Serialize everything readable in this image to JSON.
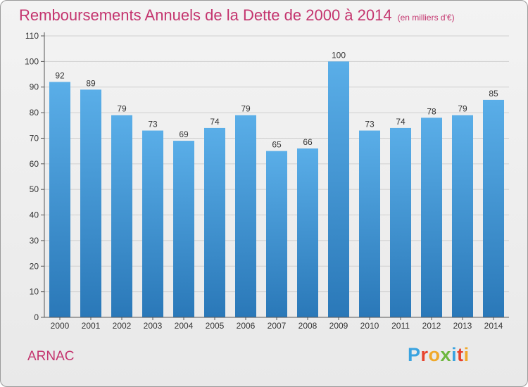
{
  "header": {
    "title": "Remboursements Annuels de la Dette de 2000 à 2014",
    "unit_note": "(en milliers d'€)"
  },
  "footer": {
    "commune": "ARNAC",
    "logo_letters": [
      {
        "char": "P",
        "color": "#3aa3e0"
      },
      {
        "char": "r",
        "color": "#e8432d"
      },
      {
        "char": "o",
        "color": "#f0a92b"
      },
      {
        "char": "x",
        "color": "#6db73f"
      },
      {
        "char": "i",
        "color": "#3aa3e0"
      },
      {
        "char": "t",
        "color": "#e8432d"
      },
      {
        "char": "i",
        "color": "#f0a92b"
      }
    ]
  },
  "chart_data": {
    "type": "bar",
    "categories": [
      "2000",
      "2001",
      "2002",
      "2003",
      "2004",
      "2005",
      "2006",
      "2007",
      "2008",
      "2009",
      "2010",
      "2011",
      "2012",
      "2013",
      "2014"
    ],
    "values": [
      92,
      89,
      79,
      73,
      69,
      74,
      79,
      65,
      66,
      100,
      73,
      74,
      78,
      79,
      85
    ],
    "ylim": [
      0,
      110
    ],
    "yticks": [
      0,
      10,
      20,
      30,
      40,
      50,
      60,
      70,
      80,
      90,
      100,
      110
    ],
    "grid": true,
    "bar_color_top": "#5aaee8",
    "bar_color_bottom": "#2a78b8",
    "grid_color": "#d0d0d0",
    "text_color": "#333333"
  }
}
